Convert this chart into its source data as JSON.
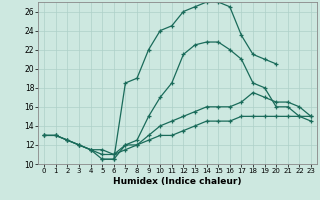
{
  "xlabel": "Humidex (Indice chaleur)",
  "bg_color": "#cde8e0",
  "grid_color": "#aed0c8",
  "line_color": "#1a6b5a",
  "xlim": [
    -0.5,
    23.5
  ],
  "ylim": [
    10,
    27
  ],
  "xticks": [
    0,
    1,
    2,
    3,
    4,
    5,
    6,
    7,
    8,
    9,
    10,
    11,
    12,
    13,
    14,
    15,
    16,
    17,
    18,
    19,
    20,
    21,
    22,
    23
  ],
  "yticks": [
    10,
    12,
    14,
    16,
    18,
    20,
    22,
    24,
    26
  ],
  "lines": [
    {
      "x": [
        5,
        6,
        7,
        8,
        9,
        10,
        11,
        12,
        13,
        14,
        15,
        16,
        17,
        18,
        19,
        20
      ],
      "y": [
        10.5,
        10.5,
        18.5,
        19.0,
        22.0,
        24.0,
        24.5,
        26.0,
        26.5,
        27.0,
        27.0,
        26.5,
        23.5,
        21.5,
        21.0,
        20.5
      ]
    },
    {
      "x": [
        0,
        1,
        2,
        3,
        4,
        5,
        6,
        7,
        8,
        9,
        10,
        11,
        12,
        13,
        14,
        15,
        16,
        17,
        18,
        19,
        20,
        21,
        22,
        23
      ],
      "y": [
        13.0,
        13.0,
        12.5,
        12.0,
        11.5,
        11.5,
        11.0,
        12.0,
        12.5,
        15.0,
        17.0,
        18.5,
        21.5,
        22.5,
        22.8,
        22.8,
        22.0,
        21.0,
        18.5,
        18.0,
        16.0,
        16.0,
        15.0,
        14.5
      ]
    },
    {
      "x": [
        0,
        1,
        2,
        3,
        4,
        5,
        6,
        7,
        8,
        9,
        10,
        11,
        12,
        13,
        14,
        15,
        16,
        17,
        18,
        19,
        20,
        21,
        22,
        23
      ],
      "y": [
        13.0,
        13.0,
        12.5,
        12.0,
        11.5,
        10.5,
        10.5,
        12.0,
        12.0,
        13.0,
        14.0,
        14.5,
        15.0,
        15.5,
        16.0,
        16.0,
        16.0,
        16.5,
        17.5,
        17.0,
        16.5,
        16.5,
        16.0,
        15.0
      ]
    },
    {
      "x": [
        0,
        1,
        2,
        3,
        4,
        5,
        6,
        7,
        8,
        9,
        10,
        11,
        12,
        13,
        14,
        15,
        16,
        17,
        18,
        19,
        20,
        21,
        22,
        23
      ],
      "y": [
        13.0,
        13.0,
        12.5,
        12.0,
        11.5,
        11.0,
        11.0,
        11.5,
        12.0,
        12.5,
        13.0,
        13.0,
        13.5,
        14.0,
        14.5,
        14.5,
        14.5,
        15.0,
        15.0,
        15.0,
        15.0,
        15.0,
        15.0,
        15.0
      ]
    }
  ]
}
